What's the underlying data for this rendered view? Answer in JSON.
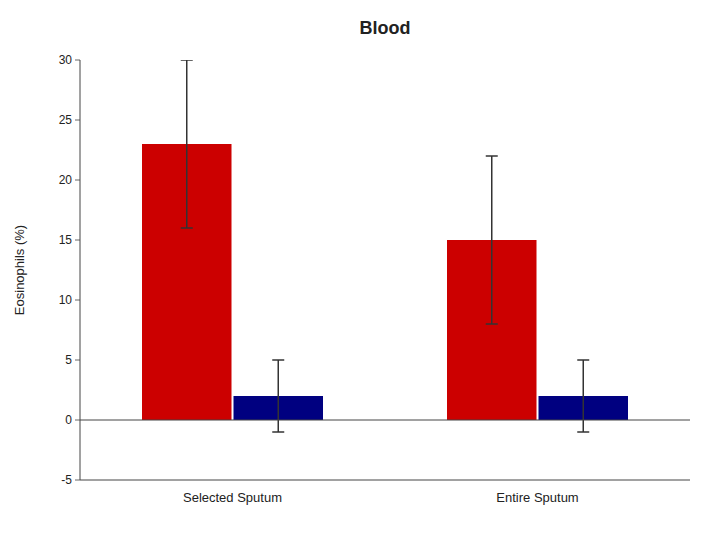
{
  "chart_data": {
    "type": "bar",
    "title": "Blood",
    "ylabel": "Eosinophils (%)",
    "categories": [
      "Selected Sputum",
      "Entire Sputum"
    ],
    "series": [
      {
        "color": "#cc0000",
        "values": [
          23,
          15
        ],
        "errors": [
          7,
          7
        ]
      },
      {
        "color": "#000080",
        "values": [
          2,
          2
        ],
        "errors": [
          3,
          3
        ]
      }
    ],
    "ylim": [
      -5,
      30
    ],
    "yticks": [
      -5,
      0,
      5,
      10,
      15,
      20,
      25,
      30
    ],
    "grid": false
  }
}
